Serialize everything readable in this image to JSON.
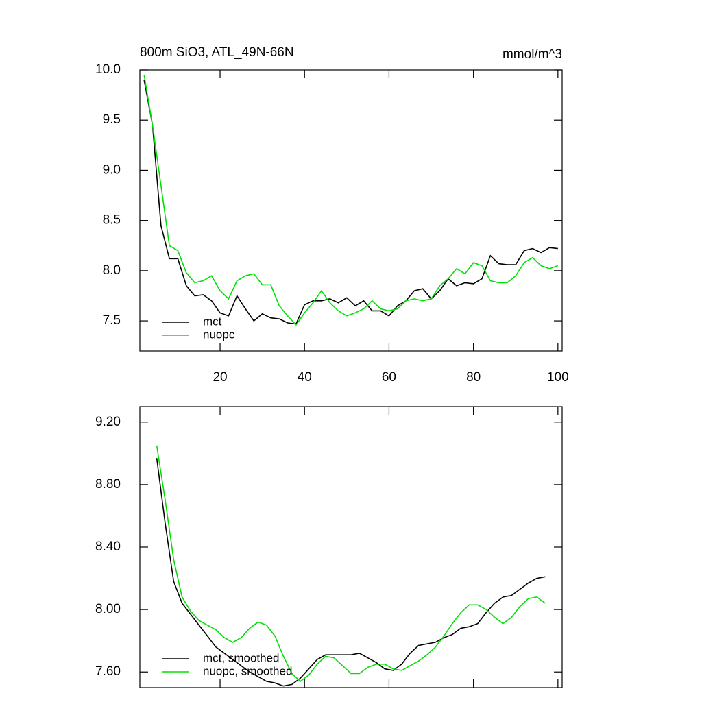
{
  "chart_data": [
    {
      "type": "line",
      "title": "800m SiO3, ATL_49N-66N",
      "units": "mmol/m^3",
      "x": [
        2,
        4,
        6,
        8,
        10,
        12,
        14,
        16,
        18,
        20,
        22,
        24,
        26,
        28,
        30,
        32,
        34,
        36,
        38,
        40,
        42,
        44,
        46,
        48,
        50,
        52,
        54,
        56,
        58,
        60,
        62,
        64,
        66,
        68,
        70,
        72,
        74,
        76,
        78,
        80,
        82,
        84,
        86,
        88,
        90,
        92,
        94,
        96,
        98,
        100
      ],
      "series": [
        {
          "name": "mct",
          "color": "#000000",
          "values": [
            9.9,
            9.45,
            8.45,
            8.12,
            8.12,
            7.85,
            7.75,
            7.76,
            7.7,
            7.58,
            7.55,
            7.75,
            7.62,
            7.5,
            7.57,
            7.53,
            7.52,
            7.48,
            7.47,
            7.66,
            7.7,
            7.7,
            7.72,
            7.68,
            7.73,
            7.65,
            7.7,
            7.6,
            7.6,
            7.55,
            7.65,
            7.7,
            7.8,
            7.82,
            7.72,
            7.8,
            7.92,
            7.85,
            7.88,
            7.87,
            7.92,
            8.15,
            8.07,
            8.06,
            8.06,
            8.2,
            8.22,
            8.18,
            8.23,
            8.22
          ]
        },
        {
          "name": "nuopc",
          "color": "#00e000",
          "values": [
            9.95,
            9.45,
            8.85,
            8.25,
            8.2,
            7.98,
            7.88,
            7.9,
            7.95,
            7.8,
            7.72,
            7.9,
            7.95,
            7.97,
            7.86,
            7.86,
            7.65,
            7.55,
            7.46,
            7.58,
            7.68,
            7.8,
            7.68,
            7.6,
            7.55,
            7.58,
            7.62,
            7.7,
            7.62,
            7.6,
            7.62,
            7.7,
            7.72,
            7.7,
            7.72,
            7.85,
            7.92,
            8.02,
            7.97,
            8.08,
            8.05,
            7.9,
            7.88,
            7.88,
            7.95,
            8.08,
            8.13,
            8.05,
            8.02,
            8.05
          ]
        }
      ],
      "xlim": [
        1,
        101
      ],
      "ylim": [
        7.2,
        10.0
      ],
      "xticks": [
        20,
        40,
        60,
        80,
        100
      ],
      "yticks": [
        7.5,
        {
          "value": 8,
          "label": "8.0"
        },
        8.5,
        {
          "value": 9,
          "label": "9.0"
        },
        9.5,
        {
          "value": 10,
          "label": "10.0"
        }
      ],
      "legend": "lower left"
    },
    {
      "type": "line",
      "x": [
        5,
        7,
        9,
        11,
        13,
        15,
        17,
        19,
        21,
        23,
        25,
        27,
        29,
        31,
        33,
        35,
        37,
        39,
        41,
        43,
        45,
        47,
        49,
        51,
        53,
        55,
        57,
        59,
        61,
        63,
        65,
        67,
        69,
        71,
        73,
        75,
        77,
        79,
        81,
        83,
        85,
        87,
        89,
        91,
        93,
        95,
        97
      ],
      "series": [
        {
          "name": "mct, smoothed",
          "color": "#000000",
          "values": [
            8.97,
            8.55,
            8.18,
            8.04,
            7.97,
            7.9,
            7.83,
            7.76,
            7.72,
            7.68,
            7.64,
            7.6,
            7.57,
            7.54,
            7.53,
            7.51,
            7.52,
            7.56,
            7.62,
            7.68,
            7.71,
            7.71,
            7.71,
            7.71,
            7.72,
            7.69,
            7.66,
            7.62,
            7.61,
            7.65,
            7.72,
            7.77,
            7.78,
            7.79,
            7.82,
            7.84,
            7.88,
            7.89,
            7.91,
            7.98,
            8.04,
            8.08,
            8.09,
            8.13,
            8.17,
            8.2,
            8.21
          ]
        },
        {
          "name": "nuopc, smoothed",
          "color": "#00e000",
          "values": [
            9.05,
            8.7,
            8.32,
            8.08,
            7.99,
            7.93,
            7.9,
            7.87,
            7.82,
            7.79,
            7.82,
            7.88,
            7.92,
            7.9,
            7.83,
            7.7,
            7.59,
            7.54,
            7.58,
            7.65,
            7.7,
            7.69,
            7.64,
            7.59,
            7.59,
            7.63,
            7.65,
            7.65,
            7.62,
            7.61,
            7.64,
            7.67,
            7.71,
            7.76,
            7.83,
            7.91,
            7.98,
            8.03,
            8.03,
            8,
            7.95,
            7.91,
            7.95,
            8.02,
            8.07,
            8.08,
            8.04
          ]
        }
      ],
      "xlim": [
        1,
        101
      ],
      "ylim": [
        7.5,
        9.3
      ],
      "xticks": [
        20,
        40,
        60,
        80,
        100
      ],
      "yticks": [
        {
          "value": 7.6,
          "label": "7.60"
        },
        {
          "value": 8,
          "label": "8.00"
        },
        {
          "value": 8.4,
          "label": "8.40"
        },
        {
          "value": 8.8,
          "label": "8.80"
        },
        {
          "value": 9.2,
          "label": "9.20"
        }
      ],
      "legend": "lower left"
    }
  ]
}
